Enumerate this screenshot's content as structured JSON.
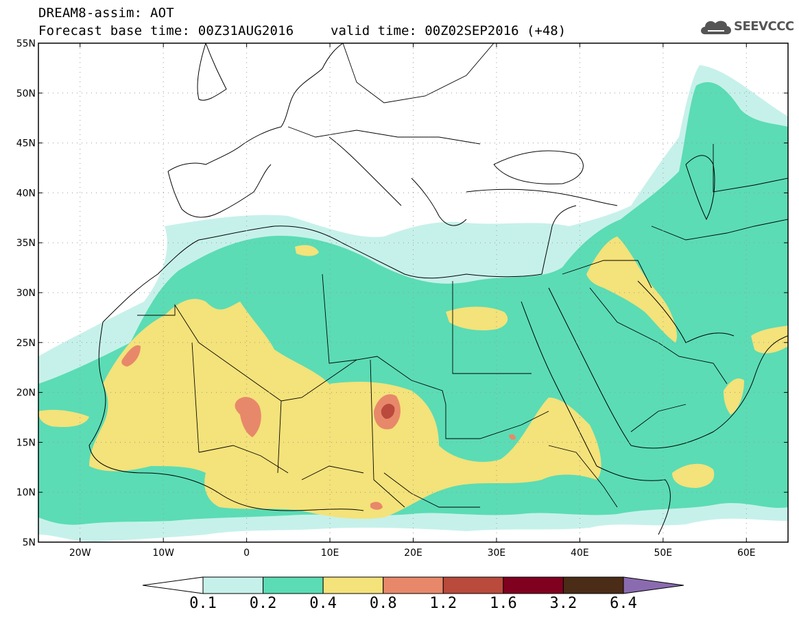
{
  "header": {
    "line1": "DREAM8-assim: AOT",
    "line2": "Forecast base time: 00Z31AUG2016",
    "valid": "valid time: 00Z02SEP2016 (+48)"
  },
  "logo": {
    "text": "SEEVCCC",
    "icon": "cloud-logo-icon"
  },
  "map": {
    "lat_labels": [
      "55N",
      "50N",
      "45N",
      "40N",
      "35N",
      "30N",
      "25N",
      "20N",
      "15N",
      "10N",
      "5N"
    ],
    "lon_labels": [
      "20W",
      "10W",
      "0",
      "10E",
      "20E",
      "30E",
      "40E",
      "50E",
      "60E"
    ],
    "lon_range": [
      -25,
      65
    ],
    "lat_range": [
      5,
      55
    ]
  },
  "colorbar": {
    "labels": [
      "0.1",
      "0.2",
      "0.4",
      "0.8",
      "1.2",
      "1.6",
      "3.2",
      "6.4"
    ],
    "colors": [
      "#c6f1ea",
      "#5bdcb4",
      "#f4e27a",
      "#e8886a",
      "#b94a3c",
      "#800020",
      "#4a2c17",
      "#8b6bb0"
    ],
    "under_color": "#ffffff"
  }
}
